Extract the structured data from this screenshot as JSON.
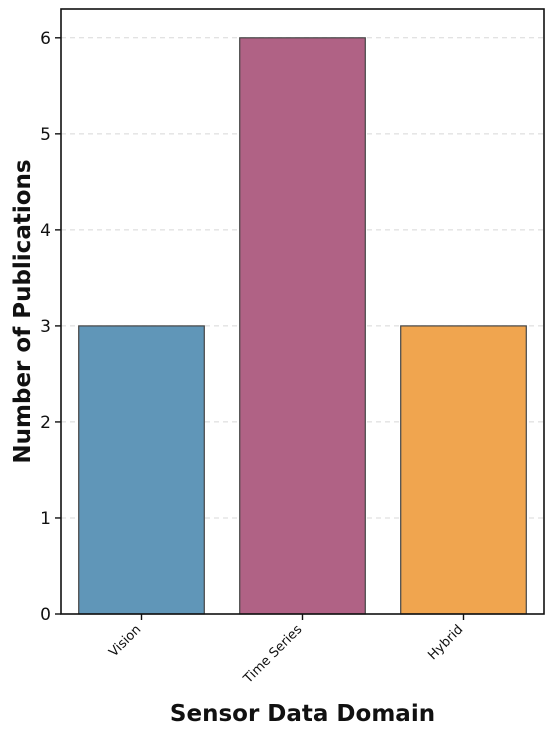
{
  "chart_data": {
    "type": "bar",
    "title": "",
    "xlabel": "Sensor Data Domain",
    "ylabel": "Number of Publications",
    "categories": [
      "Vision",
      "Time Series",
      "Hybrid"
    ],
    "values": [
      3,
      6,
      3
    ],
    "colors": [
      "#6096b8",
      "#b06285",
      "#f0a54f"
    ],
    "ylim": [
      0,
      6.3
    ],
    "yticks": [
      0,
      1,
      2,
      3,
      4,
      5,
      6
    ],
    "grid": "horizontal dashed",
    "legend": "none"
  }
}
